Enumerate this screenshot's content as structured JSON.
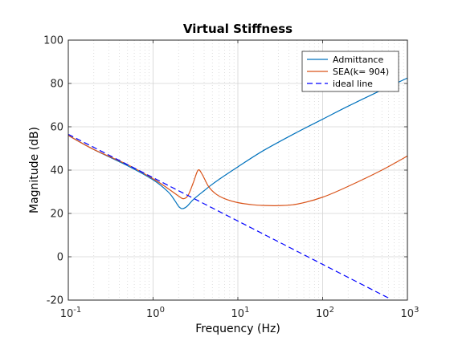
{
  "chart_data": {
    "type": "line",
    "title": "Virtual Stiffness",
    "xlabel": "Frequency  (Hz)",
    "ylabel": "Magnitude (dB)",
    "xscale": "log",
    "xlim": [
      0.1,
      1000
    ],
    "ylim": [
      -20,
      100
    ],
    "grid": true,
    "legend_position": "top-right",
    "x_ticks": [
      {
        "value": 0.1,
        "base": "10",
        "exp": "-1"
      },
      {
        "value": 1,
        "base": "10",
        "exp": "0"
      },
      {
        "value": 10,
        "base": "10",
        "exp": "1"
      },
      {
        "value": 100,
        "base": "10",
        "exp": "2"
      },
      {
        "value": 1000,
        "base": "10",
        "exp": "3"
      }
    ],
    "y_ticks": [
      {
        "value": -20,
        "label": "-20"
      },
      {
        "value": 0,
        "label": "0"
      },
      {
        "value": 20,
        "label": "20"
      },
      {
        "value": 40,
        "label": "40"
      },
      {
        "value": 60,
        "label": "60"
      },
      {
        "value": 80,
        "label": "80"
      },
      {
        "value": 100,
        "label": "100"
      }
    ],
    "series": [
      {
        "name": "Admittance",
        "color": "#0072BD",
        "dash": "solid",
        "x": [
          0.1,
          0.2,
          0.5,
          1,
          1.5,
          1.8,
          2,
          2.2,
          2.5,
          3,
          4,
          5,
          7,
          10,
          20,
          50,
          100,
          200,
          500,
          1000
        ],
        "y": [
          56,
          49.5,
          42,
          35.5,
          30,
          26,
          23.3,
          22.2,
          23.2,
          26.5,
          30.5,
          33.5,
          37.5,
          41.5,
          49,
          57.5,
          63.5,
          69.5,
          77,
          82.5
        ]
      },
      {
        "name": "SEA(k= 904)",
        "color": "#D95319",
        "dash": "solid",
        "x": [
          0.1,
          0.2,
          0.5,
          1,
          1.5,
          2,
          2.3,
          2.6,
          3,
          3.4,
          3.8,
          4.5,
          5.5,
          7,
          10,
          15,
          20,
          30,
          50,
          100,
          200,
          500,
          1000
        ],
        "y": [
          56,
          49.5,
          42.5,
          36,
          31.5,
          28,
          26.8,
          28.5,
          34.5,
          40,
          38,
          32.5,
          29,
          26.8,
          25,
          24,
          23.7,
          23.6,
          24.3,
          27.5,
          32.5,
          40,
          46.5
        ]
      },
      {
        "name": "ideal line",
        "color": "#0000FF",
        "dash": "dashed",
        "x": [
          0.1,
          1,
          10,
          100,
          610
        ],
        "y": [
          56.5,
          36.5,
          16.5,
          -3.5,
          -19.2
        ]
      }
    ]
  }
}
